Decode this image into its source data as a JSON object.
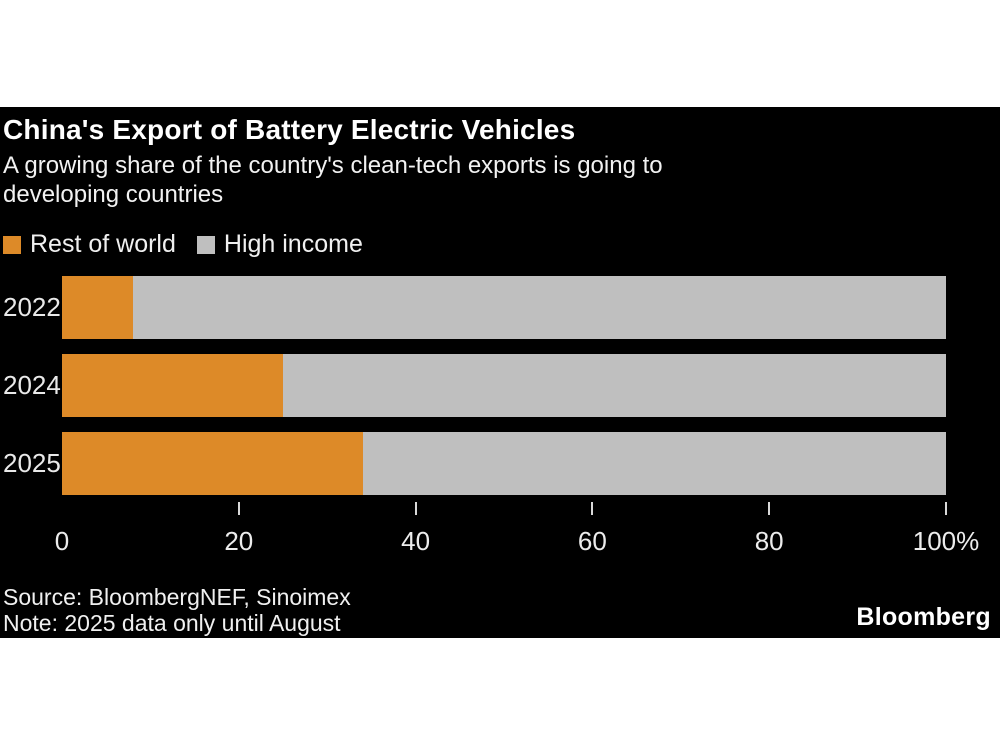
{
  "header": {
    "title": "China's Export of Battery Electric Vehicles",
    "subtitle_lines": [
      "A growing share of the country's clean-tech exports is going to",
      "developing countries"
    ]
  },
  "footer": {
    "source": "Source: BloombergNEF, Sinoimex",
    "note": "Note: 2025 data only until August",
    "logo": "Bloomberg"
  },
  "colors": {
    "background_panel": "#000000",
    "page_background": "#ffffff",
    "orange": "#dd8a28",
    "gray": "#bfbfbf",
    "text": "#f0f0f0"
  },
  "chart_data": {
    "type": "bar",
    "orientation": "horizontal",
    "stacked": true,
    "title": "China's Export of Battery Electric Vehicles",
    "subtitle": "A growing share of the country's clean-tech exports is going to developing countries",
    "categories": [
      "2022",
      "2024",
      "2025"
    ],
    "series": [
      {
        "name": "Rest of world",
        "color": "#dd8a28",
        "values": [
          8,
          25,
          34
        ]
      },
      {
        "name": "High income",
        "color": "#bfbfbf",
        "values": [
          92,
          75,
          66
        ]
      }
    ],
    "x_axis": {
      "range": [
        0,
        100
      ],
      "ticks": [
        0,
        20,
        40,
        60,
        80,
        100
      ],
      "tick_labels": [
        "0",
        "20",
        "40",
        "60",
        "80",
        "100%"
      ],
      "ticks_with_mark": [
        20,
        40,
        60,
        80,
        100
      ]
    },
    "ylabel": "",
    "xlabel": "",
    "grid": false,
    "legend_position": "top-left"
  }
}
